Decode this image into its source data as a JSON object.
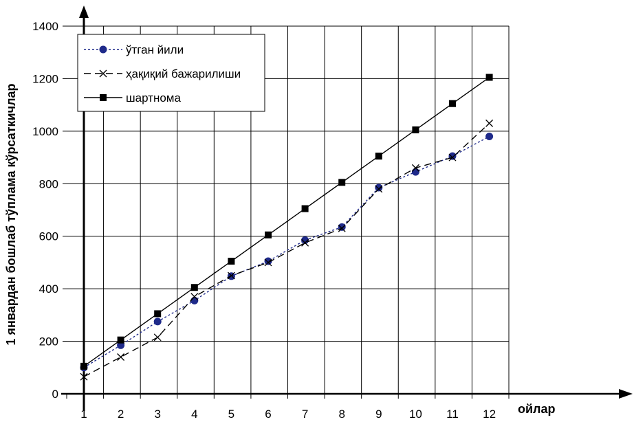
{
  "chart_data": {
    "type": "line",
    "title": "",
    "xlabel": "ойлар",
    "ylabel": "1 январдан бошлаб тўплама кўрсаткичлар",
    "categories": [
      "1",
      "2",
      "3",
      "4",
      "5",
      "6",
      "7",
      "8",
      "9",
      "10",
      "11",
      "12"
    ],
    "ylim": [
      0,
      1400
    ],
    "yticks": [
      "0",
      "200",
      "400",
      "600",
      "800",
      "1000",
      "1200",
      "1400"
    ],
    "grid": true,
    "legend_position": "top-left",
    "series": [
      {
        "name": "ўтган йили",
        "style": "dotted",
        "marker": "circle",
        "color": "#1f2a8a",
        "values": [
          100,
          185,
          275,
          355,
          448,
          505,
          585,
          635,
          785,
          845,
          905,
          980
        ]
      },
      {
        "name": "ҳақиқий бажарилиши",
        "style": "dashed",
        "marker": "x",
        "color": "#000000",
        "values": [
          65,
          140,
          215,
          370,
          450,
          500,
          575,
          630,
          780,
          860,
          900,
          1030
        ]
      },
      {
        "name": "шартнома",
        "style": "solid",
        "marker": "square",
        "color": "#000000",
        "values": [
          105,
          205,
          305,
          405,
          505,
          605,
          705,
          805,
          905,
          1005,
          1105,
          1205
        ]
      }
    ]
  }
}
